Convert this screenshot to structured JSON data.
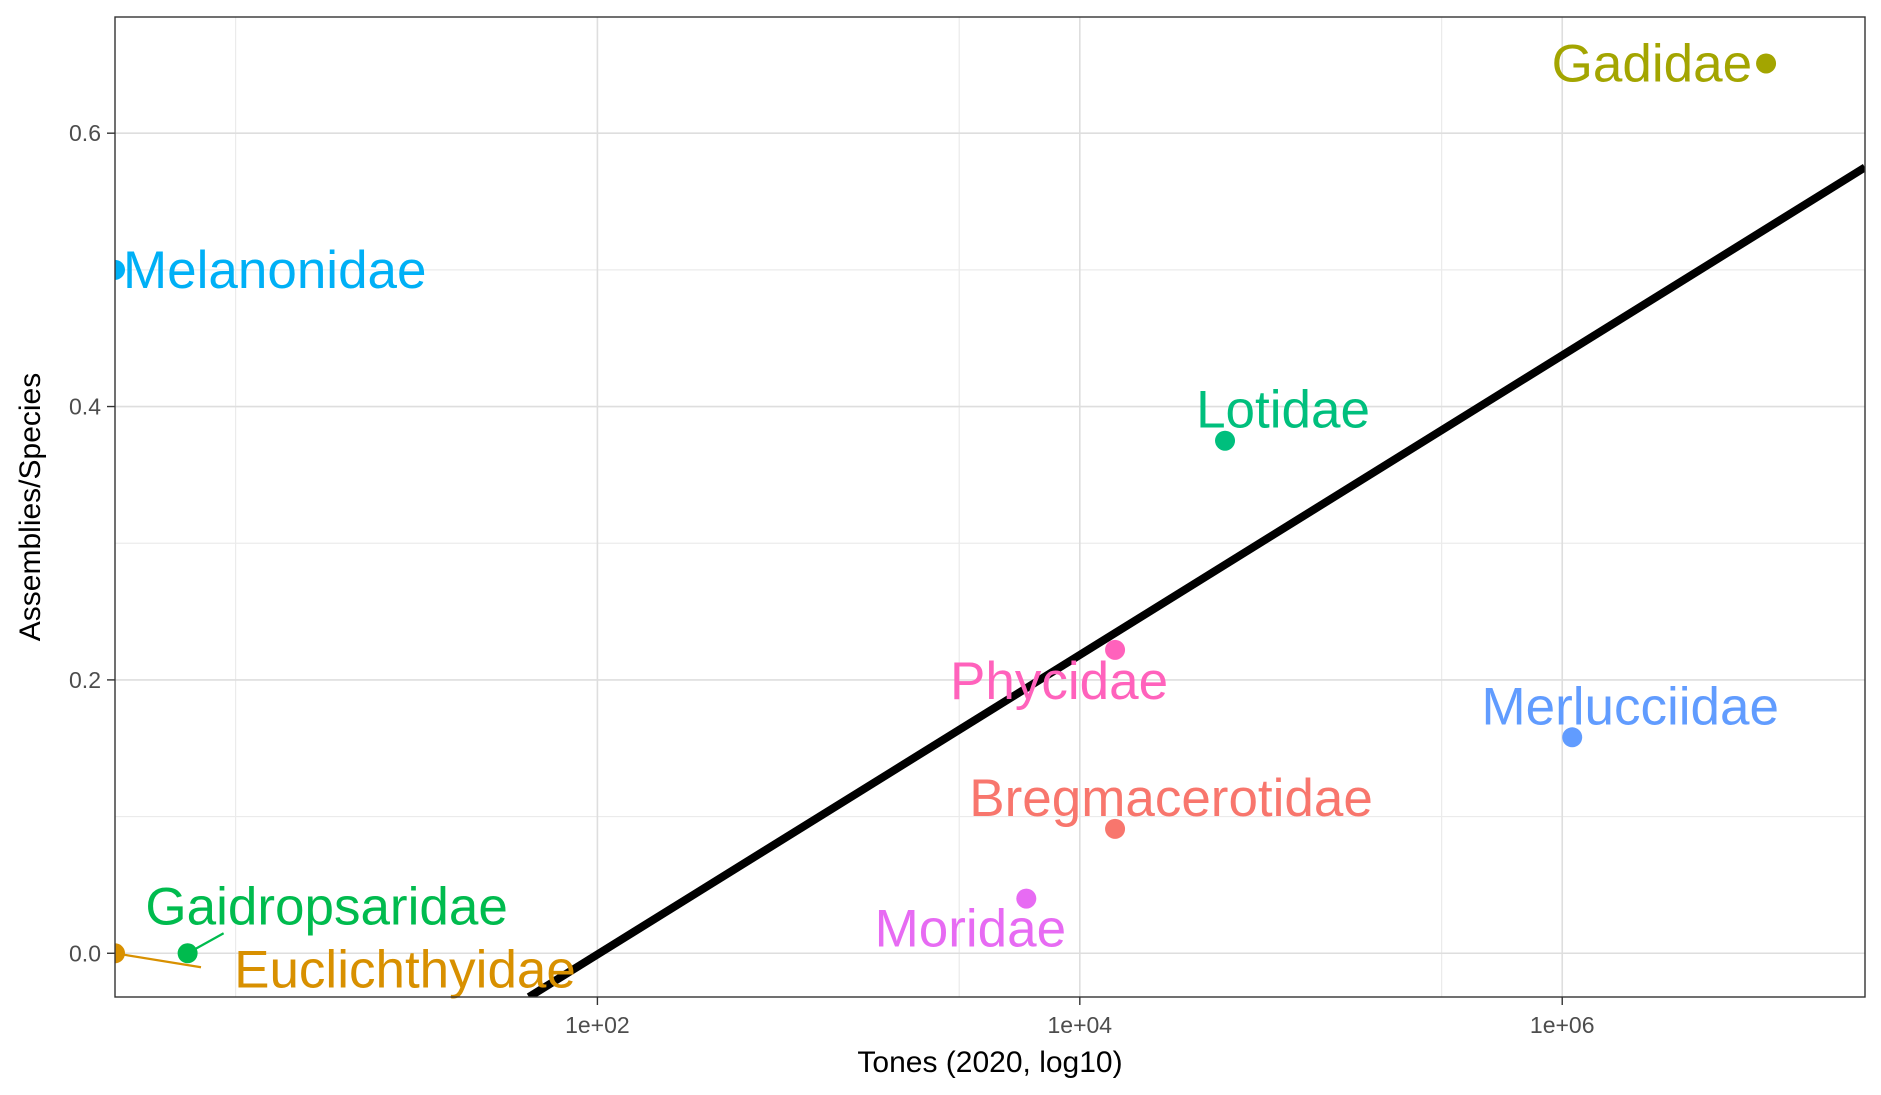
{
  "chart_data": {
    "type": "scatter",
    "title": "",
    "xlabel": "Tones (2020, log10)",
    "ylabel": "Assemblies/Species",
    "x_scale": "log10",
    "xlim": [
      1,
      18000000
    ],
    "ylim": [
      -0.032,
      0.685
    ],
    "x_ticks": [
      {
        "value": 100,
        "label": "1e+02"
      },
      {
        "value": 10000,
        "label": "1e+04"
      },
      {
        "value": 1000000,
        "label": "1e+06"
      }
    ],
    "y_ticks": [
      {
        "value": 0.0,
        "label": "0.0"
      },
      {
        "value": 0.2,
        "label": "0.2"
      },
      {
        "value": 0.4,
        "label": "0.4"
      },
      {
        "value": 0.6,
        "label": "0.6"
      }
    ],
    "grid": true,
    "legend": "none",
    "points": [
      {
        "label": "Gadidae",
        "x": 7000000,
        "y": 0.651,
        "color": "#a3a500"
      },
      {
        "label": "Melanonidae",
        "x": 1,
        "y": 0.5,
        "color": "#00b0f6"
      },
      {
        "label": "Lotidae",
        "x": 40000,
        "y": 0.375,
        "color": "#00bf7d"
      },
      {
        "label": "Phycidae",
        "x": 14000,
        "y": 0.222,
        "color": "#ff62bc"
      },
      {
        "label": "Merlucciidae",
        "x": 1100000,
        "y": 0.158,
        "color": "#619cff"
      },
      {
        "label": "Bregmacerotidae",
        "x": 14000,
        "y": 0.091,
        "color": "#f8766d"
      },
      {
        "label": "Moridae",
        "x": 6000,
        "y": 0.04,
        "color": "#e76bf3"
      },
      {
        "label": "Gaidropsaridae",
        "x": 2,
        "y": 0.0,
        "color": "#00bb4e"
      },
      {
        "label": "Euclichthyidae",
        "x": 1,
        "y": 0.0,
        "color": "#d89000"
      }
    ],
    "trend_line": {
      "color": "#000000",
      "from": {
        "x": 52,
        "y": -0.032
      },
      "to": {
        "x": 18000000,
        "y": 0.575
      }
    }
  }
}
